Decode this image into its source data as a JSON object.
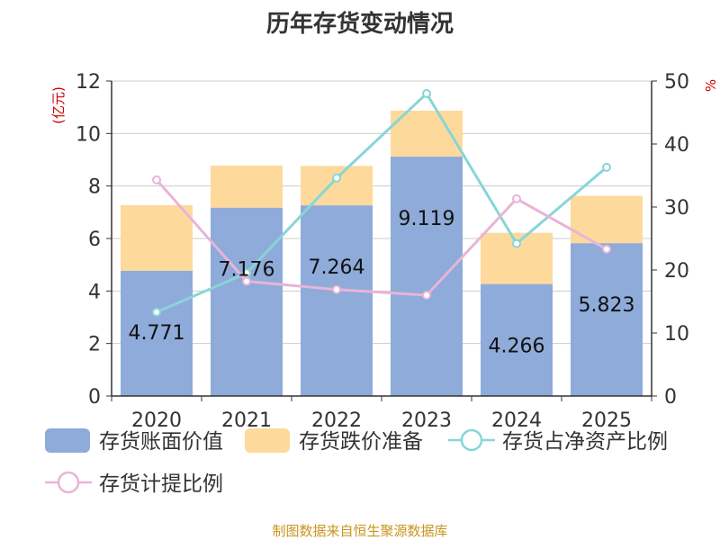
{
  "chart_data": {
    "type": "bar",
    "title": "历年存货变动情况",
    "categories": [
      "2020",
      "2021",
      "2022",
      "2023",
      "2024",
      "2025"
    ],
    "left_axis": {
      "label": "(亿元)",
      "ylim": [
        0,
        12
      ],
      "ticks": [
        "0",
        "2",
        "4",
        "6",
        "8",
        "10",
        "12"
      ]
    },
    "right_axis": {
      "label": "%",
      "ylim": [
        0,
        50
      ],
      "ticks": [
        "0",
        "10",
        "20",
        "30",
        "40",
        "50"
      ]
    },
    "series": [
      {
        "name": "存货账面价值",
        "kind": "bar",
        "axis": "left",
        "color": "#8eabd9",
        "values": [
          4.771,
          7.176,
          7.264,
          9.119,
          4.266,
          5.823
        ],
        "labels": [
          "4.771",
          "7.176",
          "7.264",
          "9.119",
          "4.266",
          "5.823"
        ]
      },
      {
        "name": "存货跌价准备",
        "kind": "bar",
        "axis": "left",
        "color": "#fdd99b",
        "values": [
          2.5,
          1.6,
          1.5,
          1.75,
          1.95,
          1.8
        ]
      },
      {
        "name": "存货占净资产比例",
        "kind": "line",
        "axis": "right",
        "color": "#88d5d8",
        "values": [
          13.3,
          19.5,
          34.6,
          48.0,
          24.2,
          36.3
        ]
      },
      {
        "name": "存货计提比例",
        "kind": "line",
        "axis": "right",
        "color": "#e9b4d8",
        "values": [
          34.3,
          18.2,
          16.9,
          16.0,
          31.3,
          23.3
        ]
      }
    ],
    "grid": true,
    "legend_position": "bottom"
  },
  "source_note": "制图数据来自恒生聚源数据库"
}
